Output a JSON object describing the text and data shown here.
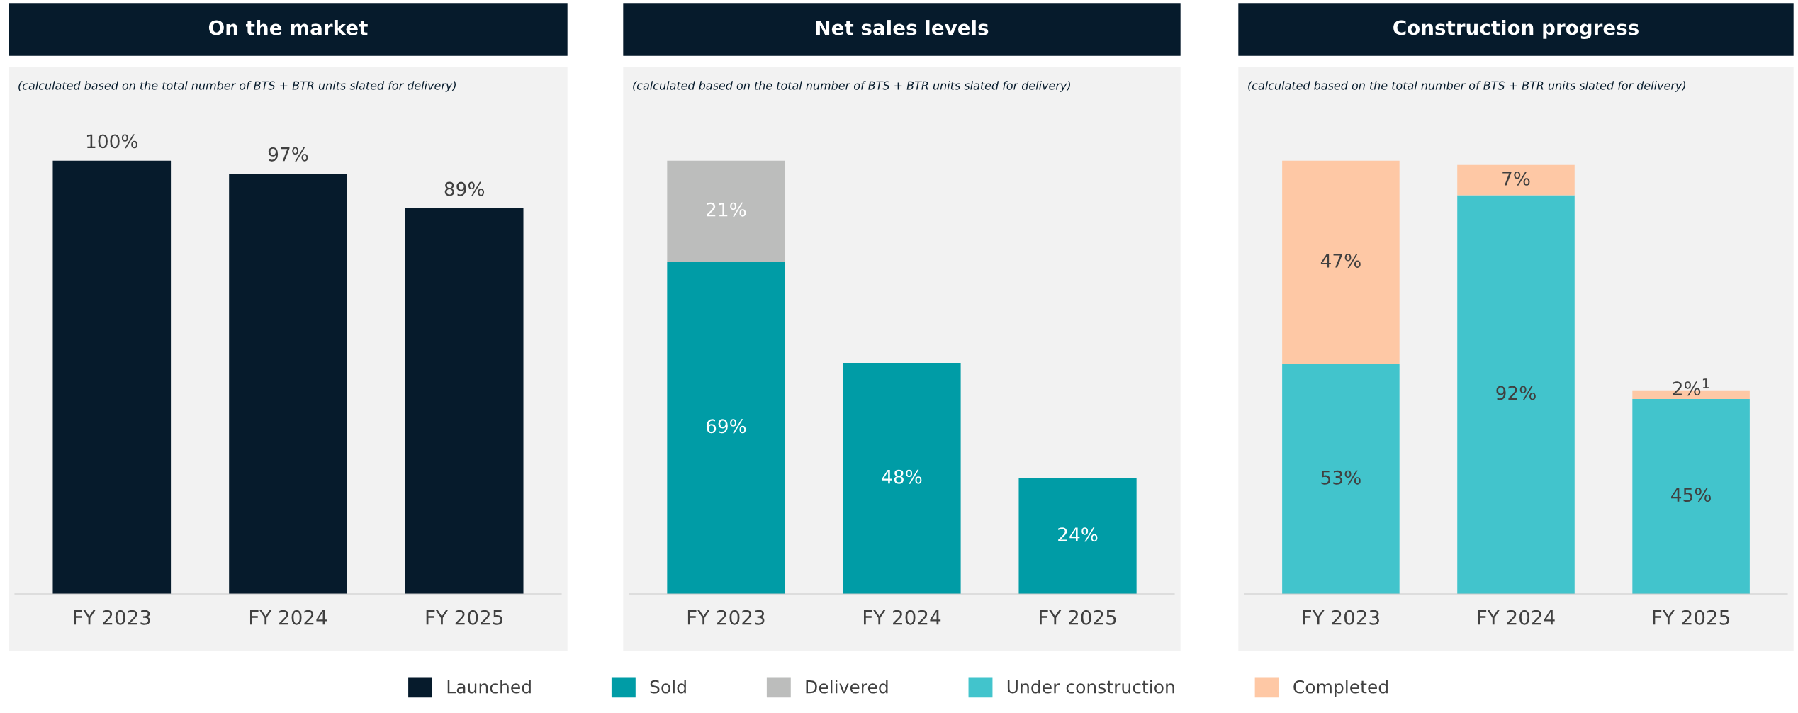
{
  "chart_data": [
    {
      "type": "bar",
      "title": "On the market",
      "subtitle": "(calculated based on the total number of BTS + BTR units slated for delivery)",
      "categories": [
        "FY 2023",
        "FY 2024",
        "FY 2025"
      ],
      "legend": "bottom",
      "series": [
        {
          "name": "Launched",
          "color": "#061b2c",
          "values": [
            100,
            97,
            89
          ],
          "value_labels": [
            "100%",
            "97%",
            "89%"
          ]
        }
      ]
    },
    {
      "type": "bar",
      "title": "Net sales levels",
      "subtitle": "(calculated based on the total number of BTS + BTR units slated for delivery)",
      "categories": [
        "FY 2023",
        "FY 2024",
        "FY 2025"
      ],
      "stacked": true,
      "legend": "bottom",
      "series": [
        {
          "name": "Sold",
          "color": "#009ca6",
          "values": [
            69,
            48,
            24
          ],
          "value_labels": [
            "69%",
            "48%",
            "24%"
          ]
        },
        {
          "name": "Delivered",
          "color": "#bcbdbc",
          "values": [
            21,
            null,
            null
          ],
          "value_labels": [
            "21%",
            null,
            null
          ]
        }
      ]
    },
    {
      "type": "bar",
      "title": "Construction progress",
      "subtitle": "(calculated based on the total number of BTS + BTR units slated for delivery)",
      "categories": [
        "FY 2023",
        "FY 2024",
        "FY 2025"
      ],
      "stacked": true,
      "legend": "bottom",
      "series": [
        {
          "name": "Under construction",
          "color": "#42c4cc",
          "values": [
            53,
            92,
            45
          ],
          "value_labels": [
            "53%",
            "92%",
            "45%"
          ]
        },
        {
          "name": "Completed",
          "color": "#fec8a5",
          "values": [
            47,
            7,
            2
          ],
          "value_labels": [
            "47%",
            "7%",
            "2%$^{1}$"
          ]
        }
      ]
    }
  ]
}
